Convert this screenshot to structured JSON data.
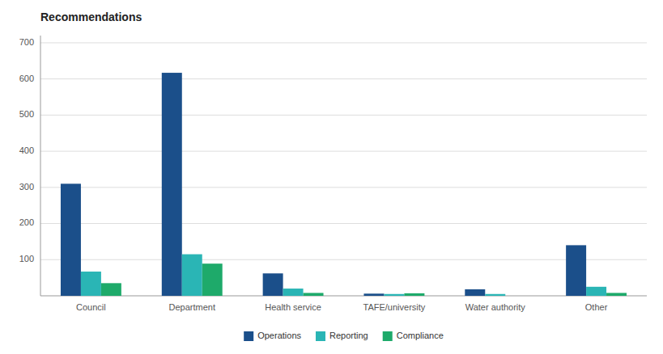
{
  "chart_data": {
    "type": "bar",
    "title": "Recommendations",
    "categories": [
      "Council",
      "Department",
      "Health service",
      "TAFE/university",
      "Water authority",
      "Other"
    ],
    "series": [
      {
        "name": "Operations",
        "color": "#1b4f8a",
        "values": [
          310,
          617,
          62,
          6,
          18,
          140
        ]
      },
      {
        "name": "Reporting",
        "color": "#2ab5b5",
        "values": [
          67,
          115,
          20,
          5,
          5,
          25
        ]
      },
      {
        "name": "Compliance",
        "color": "#1eaa6a",
        "values": [
          35,
          89,
          8,
          7,
          0,
          8
        ]
      }
    ],
    "ylim": [
      0,
      720
    ],
    "yticks": [
      100,
      200,
      300,
      400,
      500,
      600,
      700
    ],
    "grid": true,
    "legend": "bottom"
  }
}
